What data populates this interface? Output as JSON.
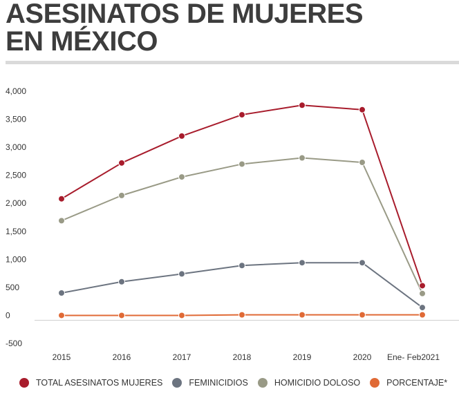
{
  "title": {
    "line1": "ASESINATOS DE MUJERES",
    "line2": "EN MÉXICO"
  },
  "chart_data": {
    "type": "line",
    "title": "ASESINATOS DE MUJERES EN MÉXICO",
    "categories": [
      "2015",
      "2016",
      "2017",
      "2018",
      "2019",
      "2020",
      "Ene- Feb2021"
    ],
    "ylim": [
      -500,
      4000
    ],
    "yticks": [
      4000,
      3500,
      3000,
      2500,
      2000,
      1500,
      1000,
      500,
      0,
      -500
    ],
    "ytick_labels": [
      "4,000",
      "3,500",
      "3,000",
      "2,500",
      "2,000",
      "1,500",
      "1,000",
      "500",
      "0",
      "-500"
    ],
    "grid": false,
    "legend_position": "bottom",
    "series": [
      {
        "name": "TOTAL ASESINATOS MUJERES",
        "color": "#a81c2c",
        "values": [
          2080,
          2720,
          3200,
          3580,
          3750,
          3670,
          530
        ]
      },
      {
        "name": "FEMINICIDIOS",
        "color": "#6c7480",
        "values": [
          400,
          600,
          740,
          890,
          940,
          940,
          140
        ]
      },
      {
        "name": "HOMICIDIO DOLOSO",
        "color": "#999a86",
        "values": [
          1690,
          2140,
          2470,
          2700,
          2810,
          2730,
          390
        ]
      },
      {
        "name": "PORCENTAJE*",
        "color": "#e06a36",
        "values": [
          0,
          0,
          0,
          10,
          10,
          10,
          10
        ]
      }
    ]
  }
}
